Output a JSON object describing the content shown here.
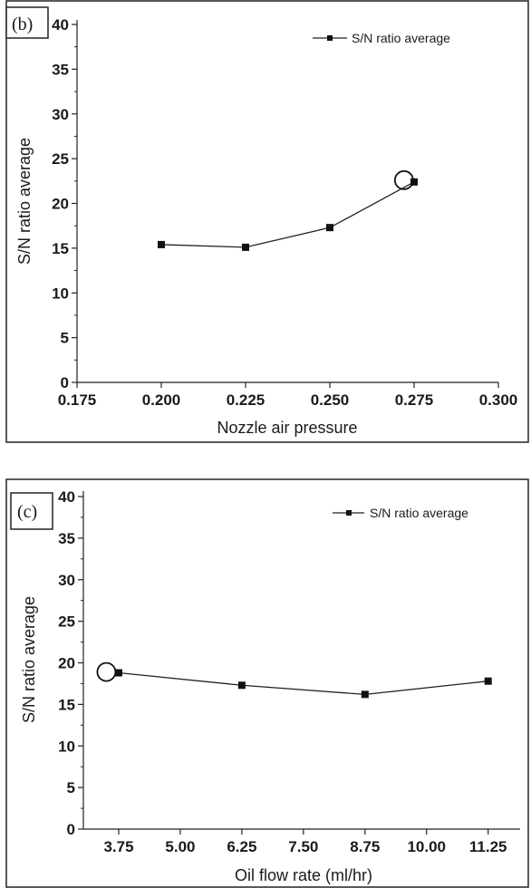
{
  "chart_data": [
    {
      "type": "line",
      "panel_label": "(b)",
      "xlabel": "Nozzle air pressure",
      "ylabel": "S/N ratio average",
      "xlim": [
        0.175,
        0.3
      ],
      "ylim": [
        0,
        40
      ],
      "x_ticks": [
        "0.175",
        "0.200",
        "0.225",
        "0.250",
        "0.275",
        "0.300"
      ],
      "y_ticks": [
        "0",
        "5",
        "10",
        "15",
        "20",
        "25",
        "30",
        "35",
        "40"
      ],
      "legend_position": "top-right",
      "grid": false,
      "series": [
        {
          "name": "S/N ratio average",
          "x": [
            0.2,
            0.225,
            0.25,
            0.275
          ],
          "values": [
            15.4,
            15.1,
            17.3,
            22.4
          ]
        }
      ],
      "highlight": {
        "x": 0.272,
        "y": 22.6
      }
    },
    {
      "type": "line",
      "panel_label": "(c)",
      "xlabel": "Oil flow rate (ml/hr)",
      "ylabel": "S/N ratio average",
      "ylim": [
        0,
        40
      ],
      "categories": [
        "3.75",
        "5.00",
        "6.25",
        "7.50",
        "8.75",
        "10.00",
        "11.25"
      ],
      "y_ticks": [
        "0",
        "5",
        "10",
        "15",
        "20",
        "25",
        "30",
        "35",
        "40"
      ],
      "legend_position": "top-right",
      "grid": false,
      "series": [
        {
          "name": "S/N ratio average",
          "x": [
            3.75,
            6.25,
            8.75,
            11.25
          ],
          "values": [
            18.8,
            17.3,
            16.2,
            17.8
          ]
        }
      ],
      "highlight": {
        "x": 3.5,
        "y": 18.9
      }
    }
  ]
}
